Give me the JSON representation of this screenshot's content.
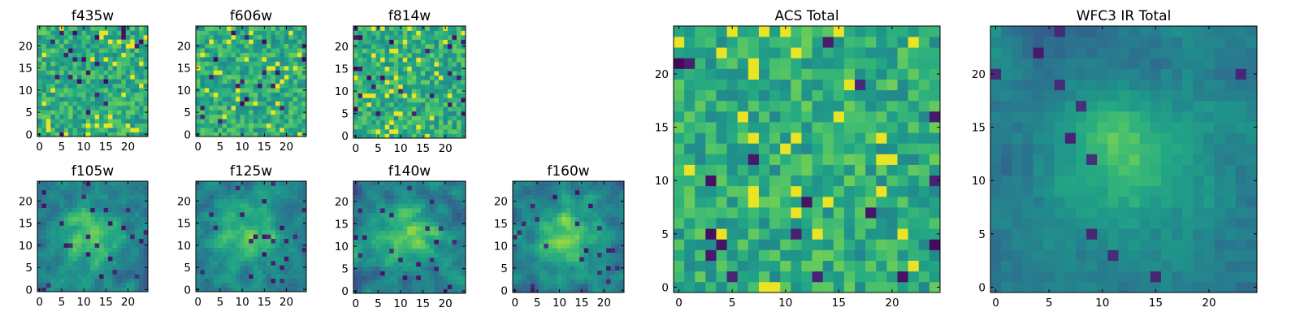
{
  "chart_data": [
    {
      "type": "heatmap",
      "title": "f435w",
      "colormap": "viridis",
      "xlim": [
        -0.5,
        24.5
      ],
      "ylim": [
        -0.5,
        24.5
      ],
      "xticks": [
        0,
        5,
        10,
        15,
        20
      ],
      "yticks": [
        0,
        5,
        10,
        15,
        20
      ],
      "x_tick_labels": [
        "0",
        "5",
        "10",
        "15",
        "20"
      ],
      "y_tick_labels": [
        "0",
        "5",
        "10",
        "15",
        "20"
      ],
      "grid": false,
      "pattern": "noise",
      "seed": 3
    },
    {
      "type": "heatmap",
      "title": "f606w",
      "colormap": "viridis",
      "xlim": [
        -0.5,
        24.5
      ],
      "ylim": [
        -0.5,
        24.5
      ],
      "xticks": [
        0,
        5,
        10,
        15,
        20
      ],
      "yticks": [
        0,
        5,
        10,
        15,
        20
      ],
      "x_tick_labels": [
        "0",
        "5",
        "10",
        "15",
        "20"
      ],
      "y_tick_labels": [
        "0",
        "5",
        "10",
        "15",
        "20"
      ],
      "grid": false,
      "pattern": "noise",
      "seed": 11
    },
    {
      "type": "heatmap",
      "title": "f814w",
      "colormap": "viridis",
      "xlim": [
        -0.5,
        24.5
      ],
      "ylim": [
        -0.5,
        24.5
      ],
      "xticks": [
        0,
        5,
        10,
        15,
        20
      ],
      "yticks": [
        0,
        5,
        10,
        15,
        20
      ],
      "x_tick_labels": [
        "0",
        "5",
        "10",
        "15",
        "20"
      ],
      "y_tick_labels": [
        "0",
        "5",
        "10",
        "15",
        "20"
      ],
      "grid": false,
      "pattern": "noise",
      "seed": 29
    },
    {
      "type": "heatmap",
      "title": "f105w",
      "colormap": "viridis",
      "xlim": [
        -0.5,
        24.5
      ],
      "ylim": [
        -0.5,
        24.5
      ],
      "xticks": [
        0,
        5,
        10,
        15,
        20
      ],
      "yticks": [
        0,
        5,
        10,
        15,
        20
      ],
      "x_tick_labels": [
        "0",
        "5",
        "10",
        "15",
        "20"
      ],
      "y_tick_labels": [
        "0",
        "5",
        "10",
        "15",
        "20"
      ],
      "grid": false,
      "pattern": "blob",
      "seed": 41
    },
    {
      "type": "heatmap",
      "title": "f125w",
      "colormap": "viridis",
      "xlim": [
        -0.5,
        24.5
      ],
      "ylim": [
        -0.5,
        24.5
      ],
      "xticks": [
        0,
        5,
        10,
        15,
        20
      ],
      "yticks": [
        0,
        5,
        10,
        15,
        20
      ],
      "x_tick_labels": [
        "0",
        "5",
        "10",
        "15",
        "20"
      ],
      "y_tick_labels": [
        "0",
        "5",
        "10",
        "15",
        "20"
      ],
      "grid": false,
      "pattern": "blob",
      "seed": 57
    },
    {
      "type": "heatmap",
      "title": "f140w",
      "colormap": "viridis",
      "xlim": [
        -0.5,
        24.5
      ],
      "ylim": [
        -0.5,
        24.5
      ],
      "xticks": [
        0,
        5,
        10,
        15,
        20
      ],
      "yticks": [
        0,
        5,
        10,
        15,
        20
      ],
      "x_tick_labels": [
        "0",
        "5",
        "10",
        "15",
        "20"
      ],
      "y_tick_labels": [
        "0",
        "5",
        "10",
        "15",
        "20"
      ],
      "grid": false,
      "pattern": "blob",
      "seed": 73
    },
    {
      "type": "heatmap",
      "title": "f160w",
      "colormap": "viridis",
      "xlim": [
        -0.5,
        24.5
      ],
      "ylim": [
        -0.5,
        24.5
      ],
      "xticks": [
        0,
        5,
        10,
        15,
        20
      ],
      "yticks": [
        0,
        5,
        10,
        15,
        20
      ],
      "x_tick_labels": [
        "0",
        "5",
        "10",
        "15",
        "20"
      ],
      "y_tick_labels": [
        "0",
        "5",
        "10",
        "15",
        "20"
      ],
      "grid": false,
      "pattern": "blob",
      "seed": 89
    },
    {
      "type": "heatmap",
      "title": "ACS Total",
      "colormap": "viridis",
      "xlim": [
        -0.5,
        24.5
      ],
      "ylim": [
        -0.5,
        24.5
      ],
      "xticks": [
        0,
        5,
        10,
        15,
        20
      ],
      "yticks": [
        0,
        5,
        10,
        15,
        20
      ],
      "x_tick_labels": [
        "0",
        "5",
        "10",
        "15",
        "20"
      ],
      "y_tick_labels": [
        "0",
        "5",
        "10",
        "15",
        "20"
      ],
      "grid": false,
      "pattern": "noise",
      "seed": 101
    },
    {
      "type": "heatmap",
      "title": "WFC3 IR Total",
      "colormap": "viridis",
      "xlim": [
        -0.5,
        24.5
      ],
      "ylim": [
        -0.5,
        24.5
      ],
      "xticks": [
        0,
        5,
        10,
        15,
        20
      ],
      "yticks": [
        0,
        5,
        10,
        15,
        20
      ],
      "x_tick_labels": [
        "0",
        "5",
        "10",
        "15",
        "20"
      ],
      "y_tick_labels": [
        "0",
        "5",
        "10",
        "15",
        "20"
      ],
      "grid": false,
      "pattern": "smooth",
      "seed": 131
    }
  ]
}
